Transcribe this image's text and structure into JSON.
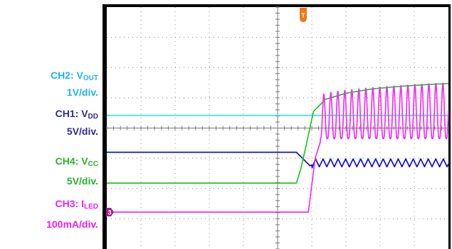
{
  "legend": [
    {
      "ch": "CH2",
      "sym": "V",
      "sub": "OUT",
      "scale": "1V/div.",
      "color": "#1eb4f0"
    },
    {
      "ch": "CH1",
      "sym": "V",
      "sub": "DD",
      "scale": "5V/div.",
      "color": "#2d2d96"
    },
    {
      "ch": "CH4",
      "sym": "V",
      "sub": "CC",
      "scale": "5V/div.",
      "color": "#28b428"
    },
    {
      "ch": "CH3",
      "sym": "I",
      "sub": "LED",
      "scale": "100mA/div.",
      "color": "#f01ef0"
    }
  ],
  "markers": {
    "trigger": "T",
    "ch3_ground": "3"
  },
  "chart_data": {
    "type": "line",
    "grid": true,
    "xlim": [
      0,
      10
    ],
    "ylim": [
      0,
      8
    ],
    "trigger_x": 5.75,
    "series": [
      {
        "channel": "CH2",
        "color": "#3cdcf0",
        "x": [
          0,
          10
        ],
        "y": [
          4.42,
          4.42
        ]
      },
      {
        "channel": "CH1",
        "color": "#1010d0",
        "x": [
          0,
          5.55,
          5.95,
          6.1,
          10
        ],
        "y": [
          3.2,
          3.2,
          2.75,
          2.85,
          2.85
        ],
        "ripple": {
          "x_start": 6.0,
          "period": 0.22,
          "amplitude": 0.13
        }
      },
      {
        "channel": "CH4",
        "color": "#22c822",
        "x": [
          0,
          5.55,
          5.68,
          5.82,
          6.05,
          6.4,
          7.0,
          7.8,
          8.6,
          9.4,
          10
        ],
        "y": [
          2.18,
          2.18,
          2.65,
          3.35,
          4.55,
          4.95,
          5.15,
          5.3,
          5.38,
          5.44,
          5.47
        ]
      },
      {
        "channel": "CH3",
        "color": "#f030f0",
        "x": [
          0,
          5.9,
          6.1,
          6.35,
          10
        ],
        "y": [
          1.22,
          1.22,
          3.0,
          3.9,
          3.9
        ],
        "ripple": {
          "x_start": 6.25,
          "period": 0.205,
          "low": 3.65,
          "high_start": 5.05,
          "high_end": 5.5
        }
      }
    ]
  }
}
